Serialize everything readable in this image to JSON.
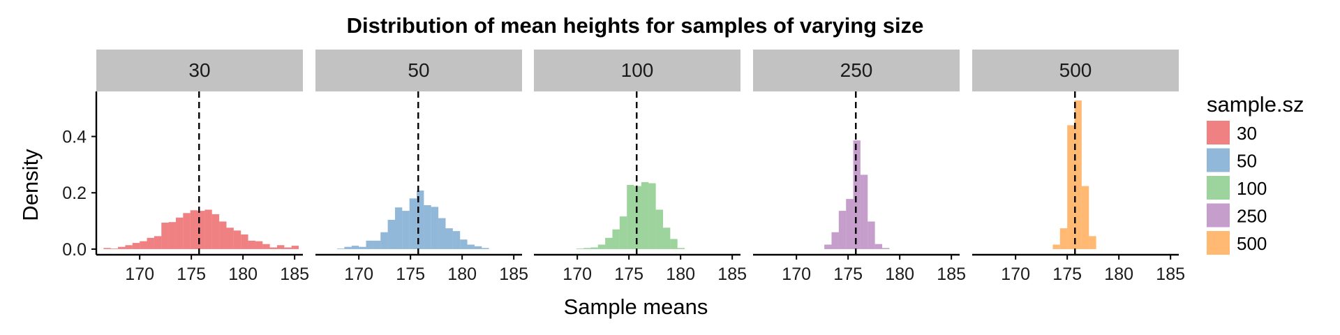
{
  "chart_data": {
    "type": "bar",
    "title": "Distribution of mean heights for samples of varying size",
    "xlabel": "Sample means",
    "ylabel": "Density",
    "xlim": [
      165.8,
      185.8
    ],
    "ylim": [
      -0.02,
      0.56
    ],
    "x_ticks": [
      "170",
      "175",
      "180",
      "185"
    ],
    "x_tick_values": [
      170,
      175,
      180,
      185
    ],
    "y_ticks": [
      "0.0",
      "0.2",
      "0.4"
    ],
    "y_tick_values": [
      0.0,
      0.2,
      0.4
    ],
    "reference_line": 175.75,
    "grid": false,
    "legend": {
      "title": "sample.sz",
      "placement": "right"
    },
    "series": [
      {
        "name": "30",
        "color": "#E41A1C",
        "bins": [
          [
            166.5,
            167.2,
            0.004
          ],
          [
            167.2,
            167.9,
            0.002
          ],
          [
            167.9,
            168.6,
            0.008
          ],
          [
            168.6,
            169.3,
            0.014
          ],
          [
            169.3,
            170.0,
            0.022
          ],
          [
            170.0,
            170.7,
            0.028
          ],
          [
            170.7,
            171.4,
            0.04
          ],
          [
            171.4,
            172.1,
            0.046
          ],
          [
            172.1,
            172.8,
            0.094
          ],
          [
            172.8,
            173.5,
            0.096
          ],
          [
            173.5,
            174.2,
            0.112
          ],
          [
            174.2,
            174.9,
            0.128
          ],
          [
            174.9,
            175.6,
            0.138
          ],
          [
            175.6,
            176.3,
            0.136
          ],
          [
            176.3,
            177.0,
            0.14
          ],
          [
            177.0,
            177.7,
            0.124
          ],
          [
            177.7,
            178.4,
            0.098
          ],
          [
            178.4,
            179.1,
            0.076
          ],
          [
            179.1,
            179.8,
            0.066
          ],
          [
            179.8,
            180.5,
            0.052
          ],
          [
            180.5,
            181.2,
            0.03
          ],
          [
            181.2,
            181.9,
            0.028
          ],
          [
            181.9,
            182.6,
            0.018
          ],
          [
            182.6,
            183.3,
            0.006
          ],
          [
            183.3,
            184.0,
            0.014
          ],
          [
            184.0,
            184.7,
            0.006
          ],
          [
            184.7,
            185.4,
            0.012
          ]
        ]
      },
      {
        "name": "50",
        "color": "#377EB8",
        "bins": [
          [
            167.9,
            168.6,
            0.002
          ],
          [
            168.6,
            169.3,
            0.008
          ],
          [
            169.3,
            170.0,
            0.012
          ],
          [
            170.0,
            170.7,
            0.008
          ],
          [
            170.7,
            171.4,
            0.03
          ],
          [
            171.4,
            172.1,
            0.03
          ],
          [
            172.1,
            172.8,
            0.06
          ],
          [
            172.8,
            173.5,
            0.104
          ],
          [
            173.5,
            174.2,
            0.148
          ],
          [
            174.2,
            174.9,
            0.136
          ],
          [
            174.9,
            175.6,
            0.18
          ],
          [
            175.6,
            176.3,
            0.208
          ],
          [
            176.3,
            177.0,
            0.156
          ],
          [
            177.0,
            177.7,
            0.15
          ],
          [
            177.7,
            178.4,
            0.11
          ],
          [
            178.4,
            179.1,
            0.074
          ],
          [
            179.1,
            179.8,
            0.064
          ],
          [
            179.8,
            180.5,
            0.034
          ],
          [
            180.5,
            181.2,
            0.016
          ],
          [
            181.2,
            181.9,
            0.01
          ],
          [
            181.9,
            182.6,
            0.004
          ]
        ]
      },
      {
        "name": "100",
        "color": "#4DAF4A",
        "bins": [
          [
            169.9,
            170.6,
            0.002
          ],
          [
            170.6,
            171.3,
            0.004
          ],
          [
            171.3,
            172.0,
            0.006
          ],
          [
            172.0,
            172.7,
            0.016
          ],
          [
            172.7,
            173.4,
            0.04
          ],
          [
            173.4,
            174.1,
            0.07
          ],
          [
            174.1,
            174.8,
            0.116
          ],
          [
            174.8,
            175.5,
            0.228
          ],
          [
            175.5,
            176.2,
            0.224
          ],
          [
            176.2,
            176.9,
            0.238
          ],
          [
            176.9,
            177.6,
            0.234
          ],
          [
            177.6,
            178.3,
            0.14
          ],
          [
            178.3,
            179.0,
            0.076
          ],
          [
            179.0,
            179.7,
            0.036
          ],
          [
            179.7,
            180.4,
            0.004
          ]
        ]
      },
      {
        "name": "250",
        "color": "#984EA3",
        "bins": [
          [
            172.7,
            173.4,
            0.016
          ],
          [
            173.4,
            174.1,
            0.06
          ],
          [
            174.1,
            174.8,
            0.136
          ],
          [
            174.8,
            175.5,
            0.178
          ],
          [
            175.5,
            176.2,
            0.386
          ],
          [
            176.2,
            176.9,
            0.264
          ],
          [
            176.9,
            177.6,
            0.098
          ],
          [
            177.6,
            178.3,
            0.018
          ],
          [
            178.3,
            179.0,
            0.004
          ]
        ]
      },
      {
        "name": "500",
        "color": "#FF7F00",
        "bins": [
          [
            173.6,
            174.3,
            0.016
          ],
          [
            174.3,
            175.0,
            0.074
          ],
          [
            175.0,
            175.7,
            0.44
          ],
          [
            175.7,
            176.4,
            0.528
          ],
          [
            176.4,
            177.1,
            0.224
          ],
          [
            177.1,
            177.8,
            0.046
          ]
        ]
      }
    ]
  }
}
